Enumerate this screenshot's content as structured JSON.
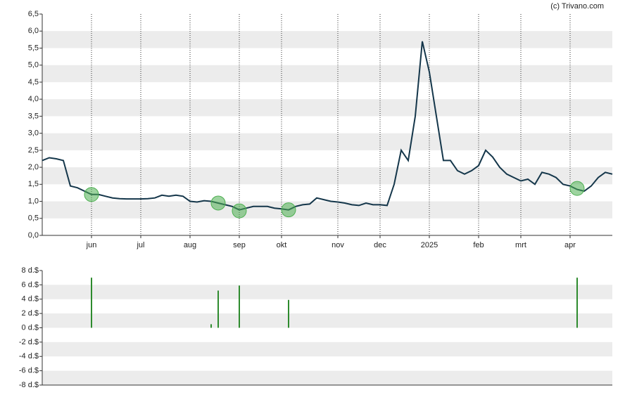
{
  "chart_data": [
    {
      "type": "line",
      "source": "(c) Trivano.com",
      "categories": [
        null,
        null,
        null,
        null,
        null,
        null,
        null,
        "jun",
        null,
        null,
        null,
        null,
        null,
        null,
        "jul",
        null,
        null,
        null,
        null,
        null,
        null,
        "aug",
        null,
        null,
        null,
        null,
        null,
        null,
        "sep",
        null,
        null,
        null,
        null,
        null,
        "okt",
        null,
        null,
        null,
        null,
        null,
        null,
        null,
        "nov",
        null,
        null,
        null,
        null,
        null,
        "dec",
        null,
        null,
        null,
        null,
        null,
        null,
        "2025",
        null,
        null,
        null,
        null,
        null,
        null,
        "feb",
        null,
        null,
        null,
        null,
        null,
        "mrt",
        null,
        null,
        null,
        null,
        null,
        null,
        "apr",
        null,
        null,
        null,
        null,
        null,
        null
      ],
      "series": [
        {
          "color": "#14364a",
          "values": [
            2.2,
            2.28,
            2.25,
            2.2,
            1.45,
            1.4,
            1.3,
            1.2,
            1.2,
            1.15,
            1.1,
            1.08,
            1.07,
            1.07,
            1.07,
            1.08,
            1.1,
            1.18,
            1.15,
            1.18,
            1.15,
            1.0,
            0.98,
            1.02,
            1.0,
            0.95,
            0.9,
            0.85,
            0.75,
            0.8,
            0.85,
            0.85,
            0.85,
            0.8,
            0.78,
            0.75,
            0.85,
            0.9,
            0.92,
            1.1,
            1.05,
            1.0,
            0.98,
            0.95,
            0.9,
            0.88,
            0.95,
            0.9,
            0.9,
            0.88,
            1.5,
            2.5,
            2.2,
            3.5,
            5.7,
            4.8,
            3.5,
            2.2,
            2.2,
            1.9,
            1.8,
            1.9,
            2.05,
            2.5,
            2.3,
            2.0,
            1.8,
            1.7,
            1.6,
            1.65,
            1.5,
            1.85,
            1.8,
            1.7,
            1.5,
            1.45,
            1.35,
            1.3,
            1.45,
            1.7,
            1.85,
            1.8
          ]
        },
        {
          "type": "scatter",
          "color": "#4caf50",
          "values": [
            null,
            null,
            null,
            null,
            null,
            null,
            null,
            1.2,
            null,
            null,
            null,
            null,
            null,
            null,
            null,
            null,
            null,
            null,
            null,
            null,
            null,
            null,
            null,
            null,
            null,
            0.95,
            null,
            null,
            0.72,
            null,
            null,
            null,
            null,
            null,
            null,
            0.75,
            null,
            null,
            null,
            null,
            null,
            null,
            null,
            null,
            null,
            null,
            null,
            null,
            null,
            null,
            null,
            null,
            null,
            null,
            null,
            null,
            null,
            null,
            null,
            null,
            null,
            null,
            null,
            null,
            null,
            null,
            null,
            null,
            null,
            null,
            null,
            null,
            null,
            null,
            null,
            null,
            1.38,
            null,
            null,
            null,
            null,
            null
          ]
        }
      ],
      "ylim": [
        0,
        6.5
      ],
      "yticks": [
        {
          "value": 0,
          "label": "0,0"
        },
        {
          "value": 0.5,
          "label": "0,5"
        },
        {
          "value": 1,
          "label": "1,0"
        },
        {
          "value": 1.5,
          "label": "1,5"
        },
        {
          "value": 2,
          "label": "2,0"
        },
        {
          "value": 2.5,
          "label": "2,5"
        },
        {
          "value": 3,
          "label": "3,0"
        },
        {
          "value": 3.5,
          "label": "3,5"
        },
        {
          "value": 4,
          "label": "4,0"
        },
        {
          "value": 4.5,
          "label": "4,5"
        },
        {
          "value": 5,
          "label": "5,0"
        },
        {
          "value": 5.5,
          "label": "5,5"
        },
        {
          "value": 6,
          "label": "6,0"
        },
        {
          "value": 6.5,
          "label": "6,5"
        }
      ],
      "grid": true
    },
    {
      "type": "bar",
      "color": "#2e8b2e",
      "values": [
        null,
        null,
        null,
        null,
        null,
        null,
        null,
        7,
        null,
        null,
        null,
        null,
        null,
        null,
        null,
        null,
        null,
        null,
        null,
        null,
        null,
        null,
        null,
        null,
        0.5,
        5.2,
        null,
        null,
        5.9,
        null,
        null,
        null,
        null,
        null,
        null,
        3.9,
        null,
        null,
        null,
        null,
        null,
        null,
        null,
        null,
        null,
        null,
        null,
        null,
        null,
        null,
        null,
        null,
        null,
        null,
        null,
        null,
        null,
        null,
        null,
        null,
        null,
        null,
        null,
        null,
        null,
        null,
        null,
        null,
        null,
        null,
        null,
        null,
        null,
        null,
        null,
        null,
        7,
        null,
        null,
        null,
        null,
        null
      ],
      "ylim": [
        -8,
        8
      ],
      "yticks": [
        {
          "value": -8,
          "label": "-8 d.$"
        },
        {
          "value": -6,
          "label": "-6 d.$"
        },
        {
          "value": -4,
          "label": "-4 d.$"
        },
        {
          "value": -2,
          "label": "-2 d.$"
        },
        {
          "value": 0,
          "label": "0 d.$"
        },
        {
          "value": 2,
          "label": "2 d.$"
        },
        {
          "value": 4,
          "label": "4 d.$"
        },
        {
          "value": 6,
          "label": "6 d.$"
        },
        {
          "value": 8,
          "label": "8 d.$"
        }
      ],
      "grid": true
    }
  ]
}
